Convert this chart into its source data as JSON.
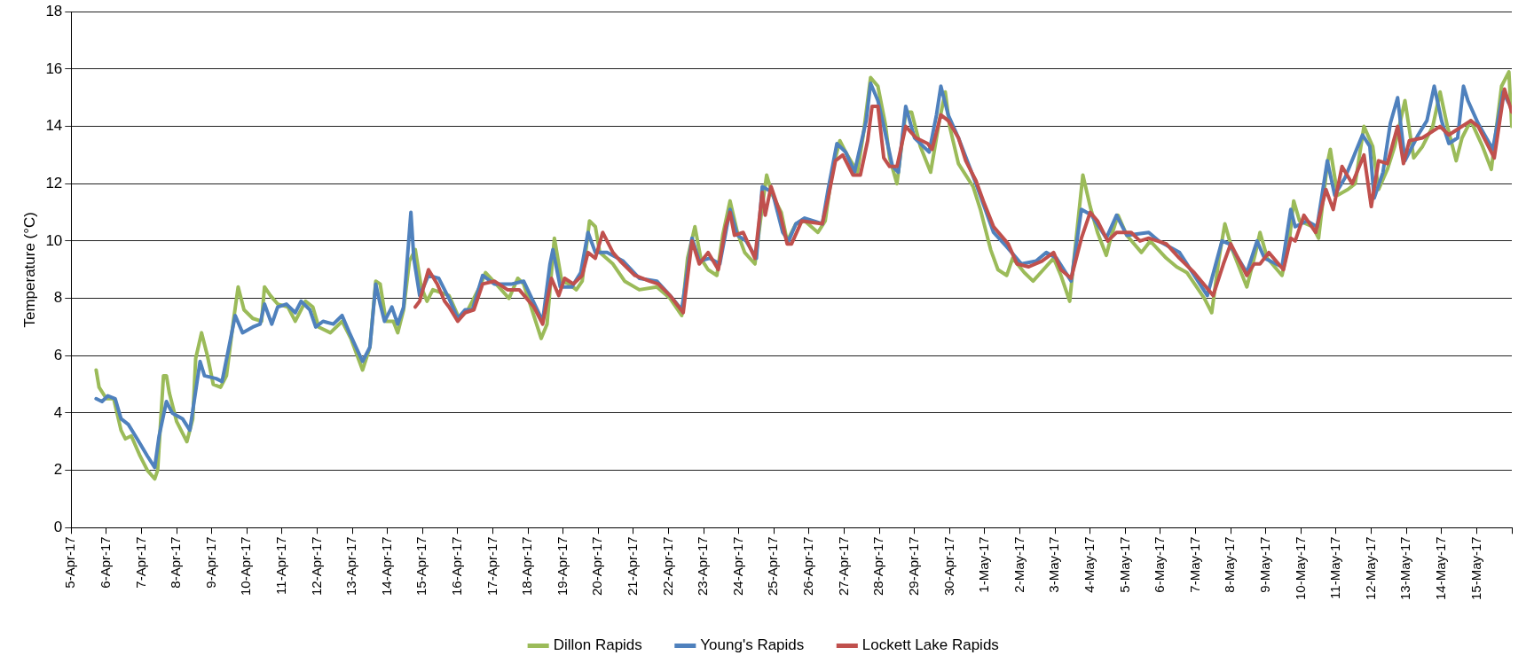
{
  "chart_data": {
    "type": "line",
    "ylabel": "Temperature (°C)",
    "ylim": [
      0,
      18
    ],
    "yticks": [
      0,
      2,
      4,
      6,
      8,
      10,
      12,
      14,
      16,
      18
    ],
    "xlim": [
      "--04-05",
      "--05-16"
    ],
    "xticks": [
      {
        "value": "--04-05",
        "label": "5-Apr-17"
      },
      {
        "value": "--04-06",
        "label": "6-Apr-17"
      },
      {
        "value": "--04-07",
        "label": "7-Apr-17"
      },
      {
        "value": "--04-08",
        "label": "8-Apr-17"
      },
      {
        "value": "--04-09",
        "label": "9-Apr-17"
      },
      {
        "value": "--04-10",
        "label": "10-Apr-17"
      },
      {
        "value": "--04-11",
        "label": "11-Apr-17"
      },
      {
        "value": "--04-12",
        "label": "12-Apr-17"
      },
      {
        "value": "--04-13",
        "label": "13-Apr-17"
      },
      {
        "value": "--04-14",
        "label": "14-Apr-17"
      },
      {
        "value": "--04-15",
        "label": "15-Apr-17"
      },
      {
        "value": "--04-16",
        "label": "16-Apr-17"
      },
      {
        "value": "--04-17",
        "label": "17-Apr-17"
      },
      {
        "value": "--04-18",
        "label": "18-Apr-17"
      },
      {
        "value": "--04-19",
        "label": "19-Apr-17"
      },
      {
        "value": "--04-20",
        "label": "20-Apr-17"
      },
      {
        "value": "--04-21",
        "label": "21-Apr-17"
      },
      {
        "value": "--04-22",
        "label": "22-Apr-17"
      },
      {
        "value": "--04-23",
        "label": "23-Apr-17"
      },
      {
        "value": "--04-24",
        "label": "24-Apr-17"
      },
      {
        "value": "--04-25",
        "label": "25-Apr-17"
      },
      {
        "value": "--04-26",
        "label": "26-Apr-17"
      },
      {
        "value": "--04-27",
        "label": "27-Apr-17"
      },
      {
        "value": "--04-28",
        "label": "28-Apr-17"
      },
      {
        "value": "--04-29",
        "label": "29-Apr-17"
      },
      {
        "value": "--04-30",
        "label": "30-Apr-17"
      },
      {
        "value": "--05-01",
        "label": "1-May-17"
      },
      {
        "value": "--05-02",
        "label": "2-May-17"
      },
      {
        "value": "--05-03",
        "label": "3-May-17"
      },
      {
        "value": "--05-04",
        "label": "4-May-17"
      },
      {
        "value": "--05-05",
        "label": "5-May-17"
      },
      {
        "value": "--05-06",
        "label": "6-May-17"
      },
      {
        "value": "--05-07",
        "label": "7-May-17"
      },
      {
        "value": "--05-08",
        "label": "8-May-17"
      },
      {
        "value": "--05-09",
        "label": "9-May-17"
      },
      {
        "value": "--05-10",
        "label": "10-May-17"
      },
      {
        "value": "--05-11",
        "label": "11-May-17"
      },
      {
        "value": "--05-12",
        "label": "12-May-17"
      },
      {
        "value": "--05-13",
        "label": "13-May-17"
      },
      {
        "value": "--05-14",
        "label": "14-May-17"
      },
      {
        "value": "--05-15",
        "label": "15-May-17"
      },
      {
        "value": "--05-16",
        "label": null
      }
    ],
    "grid": "y",
    "legend": "bottom",
    "marker": "none",
    "line_style": "solid",
    "series": [
      {
        "name": "Dillon Rapids",
        "color": "#9bbb59",
        "x": [
          "--04-05T17:00",
          "--04-05T19:00",
          "--04-06T00:00",
          "--04-06T05:00",
          "--04-06T10:00",
          "--04-06T13:00",
          "--04-06T17:00",
          "--04-06T23:00",
          "--04-07T04:00",
          "--04-07T09:00",
          "--04-07T11:00",
          "--04-07T15:00",
          "--04-07T17:00",
          "--04-07T19:00",
          "--04-08T00:00",
          "--04-08T07:00",
          "--04-08T11:00",
          "--04-08T13:00",
          "--04-08T17:00",
          "--04-08T21:00",
          "--04-09T01:00",
          "--04-09T06:00",
          "--04-09T10:00",
          "--04-09T15:00",
          "--04-09T18:00",
          "--04-09T22:00",
          "--04-10T04:00",
          "--04-10T10:00",
          "--04-10T12:00",
          "--04-10T16:00",
          "--04-10T21:00",
          "--04-11T04:00",
          "--04-11T09:00",
          "--04-11T16:00",
          "--04-11T21:00",
          "--04-12T01:00",
          "--04-12T09:00",
          "--04-12T17:00",
          "--04-12T23:00",
          "--04-13T07:00",
          "--04-13T12:00",
          "--04-13T16:00",
          "--04-13T19:00",
          "--04-13T23:00",
          "--04-14T04:00",
          "--04-14T07:00",
          "--04-14T11:00",
          "--04-14T15:00",
          "--04-14T19:00",
          "--04-14T23:00",
          "--04-15T03:00",
          "--04-15T07:00",
          "--04-15T18:00",
          "--04-16T01:00",
          "--04-16T07:00",
          "--04-16T15:00",
          "--04-16T19:00",
          "--04-17T04:00",
          "--04-17T11:00",
          "--04-17T17:00",
          "--04-17T21:00",
          "--04-18T09:00",
          "--04-18T13:00",
          "--04-18T18:00",
          "--04-18T23:00",
          "--04-19T04:00",
          "--04-19T09:00",
          "--04-19T13:00",
          "--04-19T18:00",
          "--04-19T22:00",
          "--04-20T01:00",
          "--04-20T10:00",
          "--04-20T18:00",
          "--04-21T04:00",
          "--04-21T16:00",
          "--04-22T01:00",
          "--04-22T09:00",
          "--04-22T13:00",
          "--04-22T18:00",
          "--04-22T22:00",
          "--04-23T03:00",
          "--04-23T09:00",
          "--04-23T13:00",
          "--04-23T18:00",
          "--04-23T23:00",
          "--04-24T04:00",
          "--04-24T11:00",
          "--04-24T16:00",
          "--04-24T19:00",
          "--04-24T23:00",
          "--04-25T05:00",
          "--04-25T09:00",
          "--04-25T15:00",
          "--04-25T21:00",
          "--04-26T06:00",
          "--04-26T11:00",
          "--04-26T16:00",
          "--04-26T21:00",
          "--04-27T01:00",
          "--04-27T09:00",
          "--04-27T13:00",
          "--04-27T18:00",
          "--04-27T23:00",
          "--04-28T04:00",
          "--04-28T07:00",
          "--04-28T12:00",
          "--04-28T18:00",
          "--04-28T22:00",
          "--04-29T04:00",
          "--04-29T11:00",
          "--04-29T17:00",
          "--04-29T21:00",
          "--04-30T00:00",
          "--04-30T06:00",
          "--04-30T16:00",
          "--04-30T21:00",
          "--05-01T04:00",
          "--05-01T09:00",
          "--05-01T15:00",
          "--05-01T19:00",
          "--05-02T03:00",
          "--05-02T09:00",
          "--05-02T16:00",
          "--05-02T23:00",
          "--05-03T04:00",
          "--05-03T10:00",
          "--05-03T13:00",
          "--05-03T19:00",
          "--05-04T00:00",
          "--05-04T05:00",
          "--05-04T11:00",
          "--05-04T14:00",
          "--05-04T19:00",
          "--05-05T01:00",
          "--05-05T11:00",
          "--05-05T17:00",
          "--05-06T04:00",
          "--05-06T11:00",
          "--05-06T18:00",
          "--05-07T06:00",
          "--05-07T11:00",
          "--05-07T16:00",
          "--05-07T20:00",
          "--05-08T01:00",
          "--05-08T11:00",
          "--05-08T17:00",
          "--05-08T20:00",
          "--05-09T01:00",
          "--05-09T11:00",
          "--05-09T16:00",
          "--05-09T19:00",
          "--05-09T23:00",
          "--05-10T08:00",
          "--05-10T12:00",
          "--05-10T18:00",
          "--05-10T20:00",
          "--05-11T01:00",
          "--05-11T08:00",
          "--05-11T13:00",
          "--05-11T19:00",
          "--05-12T01:00",
          "--05-12T05:00",
          "--05-12T11:00",
          "--05-12T16:00",
          "--05-12T23:00",
          "--05-13T05:00",
          "--05-13T11:00",
          "--05-13T18:00",
          "--05-13T23:00",
          "--05-14T04:00",
          "--05-14T10:00",
          "--05-14T14:00",
          "--05-14T20:00",
          "--05-15T04:00",
          "--05-15T10:00",
          "--05-15T17:00",
          "--05-15T22:00",
          "--05-16T00:00"
        ],
        "values": [
          5.5,
          4.9,
          4.5,
          4.5,
          3.4,
          3.1,
          3.2,
          2.5,
          2.0,
          1.7,
          2.0,
          5.3,
          5.3,
          4.7,
          3.7,
          3.0,
          3.8,
          5.9,
          6.8,
          6.0,
          5.0,
          4.9,
          5.3,
          7.3,
          8.4,
          7.6,
          7.3,
          7.2,
          8.4,
          8.1,
          7.8,
          7.7,
          7.2,
          7.9,
          7.7,
          7.0,
          6.8,
          7.2,
          6.6,
          5.5,
          6.3,
          8.6,
          8.5,
          7.2,
          7.2,
          6.8,
          7.6,
          9.3,
          9.7,
          8.4,
          7.9,
          8.3,
          8.1,
          7.3,
          7.6,
          8.4,
          8.9,
          8.4,
          8.0,
          8.7,
          8.5,
          6.6,
          7.1,
          10.1,
          8.6,
          8.5,
          8.3,
          8.6,
          10.7,
          10.5,
          9.6,
          9.2,
          8.6,
          8.3,
          8.4,
          8.0,
          7.4,
          9.4,
          10.5,
          9.4,
          9.0,
          8.8,
          10.2,
          11.4,
          10.3,
          9.6,
          9.2,
          11.2,
          12.3,
          11.6,
          11.0,
          10.0,
          10.6,
          10.7,
          10.3,
          10.7,
          12.5,
          13.5,
          13.1,
          12.4,
          13.7,
          15.7,
          15.4,
          14.1,
          12.9,
          12.0,
          14.5,
          14.5,
          13.3,
          12.4,
          14.2,
          15.2,
          14.0,
          12.7,
          11.9,
          11.1,
          9.7,
          9.0,
          8.8,
          9.4,
          8.9,
          8.6,
          9.0,
          9.4,
          8.8,
          7.9,
          9.4,
          12.3,
          11.2,
          10.3,
          9.5,
          10.1,
          10.9,
          10.2,
          9.6,
          10.0,
          9.4,
          9.1,
          8.9,
          8.0,
          7.5,
          9.4,
          10.6,
          9.7,
          8.4,
          9.6,
          10.3,
          9.4,
          8.8,
          10.0,
          11.4,
          10.7,
          10.5,
          10.1,
          12.7,
          13.2,
          11.6,
          11.8,
          12.0,
          14.0,
          13.3,
          11.8,
          12.5,
          13.3,
          14.9,
          12.9,
          13.3,
          14.0,
          15.2,
          14.0,
          12.8,
          13.6,
          14.2,
          13.3,
          12.5,
          15.4,
          15.9,
          14.0
        ]
      },
      {
        "name": "Young's Rapids",
        "color": "#4f81bd",
        "x": [
          "--04-05T17:00",
          "--04-05T21:00",
          "--04-06T01:00",
          "--04-06T06:00",
          "--04-06T10:00",
          "--04-06T15:00",
          "--04-06T21:00",
          "--04-07T04:00",
          "--04-07T09:00",
          "--04-07T12:00",
          "--04-07T17:00",
          "--04-07T21:00",
          "--04-08T04:00",
          "--04-08T09:00",
          "--04-08T16:00",
          "--04-08T19:00",
          "--04-09T03:00",
          "--04-09T07:00",
          "--04-09T16:00",
          "--04-09T21:00",
          "--04-10T04:00",
          "--04-10T09:00",
          "--04-10T12:00",
          "--04-10T17:00",
          "--04-10T21:00",
          "--04-11T03:00",
          "--04-11T09:00",
          "--04-11T13:00",
          "--04-11T19:00",
          "--04-11T23:00",
          "--04-12T04:00",
          "--04-12T11:00",
          "--04-12T17:00",
          "--04-12T22:00",
          "--04-13T07:00",
          "--04-13T12:00",
          "--04-13T16:00",
          "--04-13T19:00",
          "--04-13T22:00",
          "--04-14T03:00",
          "--04-14T07:00",
          "--04-14T11:00",
          "--04-14T16:00",
          "--04-14T18:00",
          "--04-14T22:00",
          "--04-15T04:00",
          "--04-15T11:00",
          "--04-15T18:00",
          "--04-16T00:00",
          "--04-16T05:00",
          "--04-16T10:00",
          "--04-16T17:00",
          "--04-17T01:00",
          "--04-17T13:00",
          "--04-17T21:00",
          "--04-18T10:00",
          "--04-18T15:00",
          "--04-18T17:00",
          "--04-18T22:00",
          "--04-19T06:00",
          "--04-19T12:00",
          "--04-19T17:00",
          "--04-19T22:00",
          "--04-20T06:00",
          "--04-20T17:00",
          "--04-21T04:00",
          "--04-21T16:00",
          "--04-22T01:00",
          "--04-22T09:00",
          "--04-22T16:00",
          "--04-22T21:00",
          "--04-23T04:00",
          "--04-23T11:00",
          "--04-23T18:00",
          "--04-23T23:00",
          "--04-24T05:00",
          "--04-24T12:00",
          "--04-24T16:00",
          "--04-24T23:00",
          "--04-25T06:00",
          "--04-25T10:00",
          "--04-25T15:00",
          "--04-25T21:00",
          "--04-26T09:00",
          "--04-26T13:00",
          "--04-26T19:00",
          "--04-27T01:00",
          "--04-27T07:00",
          "--04-27T15:00",
          "--04-27T18:00",
          "--04-27T23:00",
          "--04-28T03:00",
          "--04-28T09:00",
          "--04-28T13:00",
          "--04-28T18:00",
          "--04-29T00:00",
          "--04-29T10:00",
          "--04-29T15:00",
          "--04-29T18:00",
          "--04-29T23:00",
          "--04-30T06:00",
          "--04-30T18:00",
          "--05-01T06:00",
          "--05-01T15:00",
          "--05-02T01:00",
          "--05-02T11:00",
          "--05-02T18:00",
          "--05-03T01:00",
          "--05-03T11:00",
          "--05-03T18:00",
          "--05-04T01:00",
          "--05-04T11:00",
          "--05-04T18:00",
          "--05-05T01:00",
          "--05-05T16:00",
          "--05-05T23:00",
          "--05-06T13:00",
          "--05-07T08:00",
          "--05-07T18:00",
          "--05-07T23:00",
          "--05-08T11:00",
          "--05-08T18:00",
          "--05-08T23:00",
          "--05-09T11:00",
          "--05-09T17:00",
          "--05-09T20:00",
          "--05-10T04:00",
          "--05-10T11:00",
          "--05-10T18:00",
          "--05-10T23:00",
          "--05-11T06:00",
          "--05-11T18:00",
          "--05-11T23:00",
          "--05-12T02:00",
          "--05-12T08:00",
          "--05-12T13:00",
          "--05-12T18:00",
          "--05-12T23:00",
          "--05-13T08:00",
          "--05-13T14:00",
          "--05-13T19:00",
          "--05-14T00:00",
          "--05-14T05:00",
          "--05-14T11:00",
          "--05-14T15:00",
          "--05-14T18:00",
          "--05-15T01:00",
          "--05-15T11:00",
          "--05-15T18:00",
          "--05-15T22:00"
        ],
        "values": [
          4.5,
          4.4,
          4.6,
          4.5,
          3.8,
          3.6,
          3.1,
          2.5,
          2.1,
          3.2,
          4.4,
          4.0,
          3.8,
          3.4,
          5.8,
          5.3,
          5.2,
          5.1,
          7.4,
          6.8,
          7.0,
          7.1,
          7.8,
          7.1,
          7.7,
          7.8,
          7.5,
          7.9,
          7.6,
          7.0,
          7.2,
          7.1,
          7.4,
          6.8,
          5.8,
          6.3,
          8.5,
          7.8,
          7.2,
          7.7,
          7.1,
          7.7,
          11.0,
          9.4,
          8.1,
          8.8,
          8.7,
          8.0,
          7.3,
          7.6,
          7.6,
          8.8,
          8.5,
          8.5,
          8.6,
          7.2,
          9.2,
          9.7,
          8.4,
          8.4,
          8.9,
          10.3,
          9.6,
          9.6,
          9.3,
          8.7,
          8.6,
          8.1,
          7.6,
          10.1,
          9.3,
          9.4,
          9.2,
          11.1,
          10.2,
          10.0,
          9.4,
          11.9,
          11.7,
          10.3,
          10.0,
          10.6,
          10.8,
          10.6,
          11.8,
          13.4,
          13.1,
          12.4,
          14.2,
          15.5,
          14.9,
          14.0,
          12.6,
          12.4,
          14.7,
          13.6,
          13.1,
          14.4,
          15.4,
          14.4,
          13.6,
          12.0,
          10.3,
          9.8,
          9.2,
          9.3,
          9.6,
          9.4,
          8.6,
          11.1,
          10.9,
          10.1,
          10.9,
          10.2,
          10.3,
          10.0,
          9.6,
          8.1,
          10.0,
          9.9,
          8.9,
          10.0,
          9.4,
          9.1,
          11.1,
          10.5,
          10.7,
          10.5,
          12.8,
          11.6,
          12.2,
          13.7,
          13.3,
          11.5,
          12.4,
          14.1,
          15.0,
          12.8,
          13.7,
          14.2,
          15.4,
          14.2,
          13.4,
          13.6,
          15.4,
          14.9,
          14.1,
          13.2,
          15.2,
          14.8
        ]
      },
      {
        "name": "Lockett Lake Rapids",
        "color": "#c0504d",
        "x": [
          "--04-14T19:00",
          "--04-14T22:00",
          "--04-15T04:00",
          "--04-15T10:00",
          "--04-15T15:00",
          "--04-15T18:00",
          "--04-16T00:00",
          "--04-16T05:00",
          "--04-16T11:00",
          "--04-16T17:00",
          "--04-17T01:00",
          "--04-17T10:00",
          "--04-17T18:00",
          "--04-18T04:00",
          "--04-18T10:00",
          "--04-18T16:00",
          "--04-18T21:00",
          "--04-19T01:00",
          "--04-19T07:00",
          "--04-19T13:00",
          "--04-19T17:00",
          "--04-19T22:00",
          "--04-20T03:00",
          "--04-20T10:00",
          "--04-20T15:00",
          "--04-21T01:00",
          "--04-21T11:00",
          "--04-21T17:00",
          "--04-22T01:00",
          "--04-22T10:00",
          "--04-22T16:00",
          "--04-22T21:00",
          "--04-23T03:00",
          "--04-23T10:00",
          "--04-23T15:00",
          "--04-23T18:00",
          "--04-23T21:00",
          "--04-24T03:00",
          "--04-24T11:00",
          "--04-24T16:00",
          "--04-24T18:00",
          "--04-24T22:00",
          "--04-25T04:00",
          "--04-25T09:00",
          "--04-25T12:00",
          "--04-25T19:00",
          "--04-26T09:00",
          "--04-26T13:00",
          "--04-26T18:00",
          "--04-26T23:00",
          "--04-27T06:00",
          "--04-27T11:00",
          "--04-27T16:00",
          "--04-27T19:00",
          "--04-27T23:00",
          "--04-28T03:00",
          "--04-28T07:00",
          "--04-28T12:00",
          "--04-28T18:00",
          "--04-29T01:00",
          "--04-29T09:00",
          "--04-29T12:00",
          "--04-29T18:00",
          "--04-29T23:00",
          "--04-30T06:00",
          "--04-30T11:00",
          "--04-30T18:00",
          "--04-30T23:00",
          "--05-01T06:00",
          "--05-01T16:00",
          "--05-01T22:00",
          "--05-02T06:00",
          "--05-02T15:00",
          "--05-02T23:00",
          "--05-03T04:00",
          "--05-03T11:00",
          "--05-03T18:00",
          "--05-04T00:00",
          "--05-04T05:00",
          "--05-04T12:00",
          "--05-04T18:00",
          "--05-05T04:00",
          "--05-05T10:00",
          "--05-05T16:00",
          "--05-06T04:00",
          "--05-06T13:00",
          "--05-06T23:00",
          "--05-07T12:00",
          "--05-07T19:00",
          "--05-08T00:00",
          "--05-08T11:00",
          "--05-08T16:00",
          "--05-08T20:00",
          "--05-09T02:00",
          "--05-09T12:00",
          "--05-09T17:00",
          "--05-09T20:00",
          "--05-10T02:00",
          "--05-10T10:00",
          "--05-10T17:00",
          "--05-10T22:00",
          "--05-11T04:00",
          "--05-11T11:00",
          "--05-11T19:00",
          "--05-12T00:00",
          "--05-12T05:00",
          "--05-12T11:00",
          "--05-12T18:00",
          "--05-12T22:00",
          "--05-13T02:00",
          "--05-13T11:00",
          "--05-13T23:00",
          "--05-14T05:00",
          "--05-14T11:00",
          "--05-14T20:00",
          "--05-15T01:00",
          "--05-15T12:00",
          "--05-15T19:00",
          "--05-16T00:00"
        ],
        "values": [
          7.7,
          7.9,
          9.0,
          8.5,
          7.9,
          7.7,
          7.2,
          7.5,
          7.6,
          8.5,
          8.6,
          8.3,
          8.3,
          7.7,
          7.1,
          8.7,
          8.1,
          8.7,
          8.5,
          8.8,
          9.6,
          9.4,
          10.3,
          9.6,
          9.3,
          8.8,
          8.6,
          8.5,
          8.1,
          7.5,
          10.0,
          9.2,
          9.6,
          9.0,
          10.5,
          11.0,
          10.2,
          10.3,
          9.4,
          11.7,
          10.9,
          11.9,
          11.0,
          9.9,
          9.9,
          10.7,
          10.6,
          11.5,
          12.8,
          13.0,
          12.3,
          12.3,
          13.5,
          14.7,
          14.7,
          12.9,
          12.6,
          12.6,
          14.0,
          13.6,
          13.4,
          13.2,
          14.4,
          14.2,
          13.6,
          12.8,
          12.1,
          11.4,
          10.5,
          9.9,
          9.2,
          9.1,
          9.3,
          9.6,
          9.0,
          8.7,
          10.1,
          11.0,
          10.7,
          10.0,
          10.3,
          10.3,
          10.0,
          10.1,
          9.9,
          9.4,
          8.9,
          8.1,
          9.2,
          9.9,
          8.8,
          9.2,
          9.2,
          9.6,
          9.0,
          10.1,
          10.0,
          10.9,
          10.3,
          11.8,
          11.1,
          12.6,
          12.0,
          13.0,
          11.2,
          12.8,
          12.7,
          14.0,
          12.7,
          13.5,
          13.6,
          14.0,
          13.7,
          13.9,
          14.2,
          14.0,
          12.9,
          15.3,
          14.5
        ]
      }
    ]
  }
}
